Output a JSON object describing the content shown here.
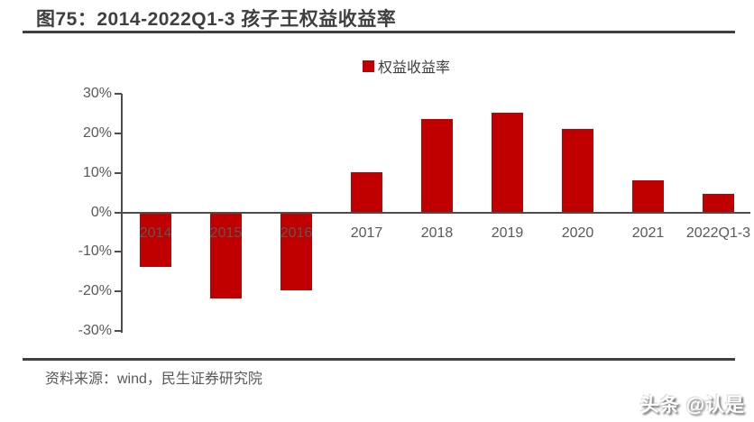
{
  "header": {
    "title": "图75：2014-2022Q1-3 孩子王权益收益率"
  },
  "legend": {
    "label": "权益收益率",
    "swatch_color": "#c00000"
  },
  "footer": {
    "source": "资料来源：wind，民生证券研究院",
    "watermark": "头条 @认是"
  },
  "colors": {
    "bar": "#c00000",
    "axis_line": "#4d4d4d",
    "rule_line": "#404040",
    "tick_label": "#595959",
    "title_text": "#3f3f3f"
  },
  "chart_data": {
    "type": "bar",
    "title": "2014-2022Q1-3 孩子王权益收益率",
    "categories": [
      "2014",
      "2015",
      "2016",
      "2017",
      "2018",
      "2019",
      "2020",
      "2021",
      "2022Q1-3"
    ],
    "series": [
      {
        "name": "权益收益率",
        "values": [
          -13.5,
          -21.5,
          -19.5,
          10,
          23.5,
          25,
          21,
          8,
          4.5
        ]
      }
    ],
    "unit": "%",
    "ylim": [
      -30,
      30
    ],
    "ytick_values": [
      30,
      20,
      10,
      0,
      -10,
      -20,
      -30
    ],
    "ytick_labels": [
      "30%",
      "20%",
      "10%",
      "0%",
      "-10%",
      "-20%",
      "-30%"
    ],
    "xlabel": "",
    "ylabel": "",
    "grid": false,
    "legend_position": "top-center",
    "bar_color": "#c00000"
  }
}
